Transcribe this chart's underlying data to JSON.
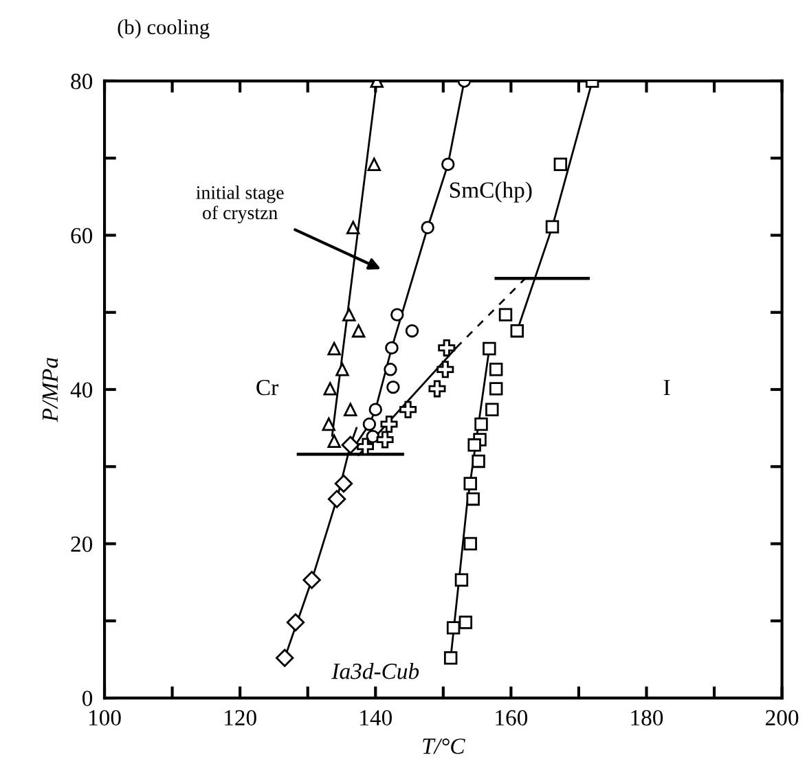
{
  "chart_data": {
    "type": "scatter",
    "title": "(b) cooling",
    "xlabel": "T/°C",
    "ylabel": "P/MPa",
    "xlim": [
      100,
      200
    ],
    "ylim": [
      0,
      80
    ],
    "xticks": [
      100,
      {
        "value": 110,
        "label": null
      },
      120,
      {
        "value": 130,
        "label": null
      },
      140,
      {
        "value": 150,
        "label": null
      },
      160,
      {
        "value": 170,
        "label": null
      },
      180,
      {
        "value": 190,
        "label": null
      },
      200
    ],
    "yticks": [
      0,
      {
        "value": 10,
        "label": null
      },
      20,
      {
        "value": 30,
        "label": null
      },
      40,
      {
        "value": 50,
        "label": null
      },
      60,
      {
        "value": 70,
        "label": null
      },
      80
    ],
    "grid": false,
    "legend": false,
    "series": [
      {
        "marker": "triangle",
        "color": "#000000",
        "x": [
          140.2,
          139.8,
          136.7,
          136.1,
          137.5,
          133.9,
          135.1,
          133.3,
          136.3,
          133.1,
          133.9
        ],
        "values": [
          80,
          69.2,
          61,
          49.7,
          47.6,
          45.3,
          42.6,
          40.1,
          37.4,
          35.5,
          33.3
        ]
      },
      {
        "marker": "circle",
        "color": "#000000",
        "x": [
          153.1,
          150.7,
          147.7,
          143.2,
          145.4,
          142.4,
          142.2,
          142.6,
          140.0,
          139.1,
          139.6
        ],
        "values": [
          80,
          69.2,
          61,
          49.7,
          47.6,
          45.4,
          42.6,
          40.3,
          37.4,
          35.5,
          33.9
        ]
      },
      {
        "marker": "cross",
        "color": "#000000",
        "x": [
          150.5,
          150.3,
          149.1,
          144.8,
          142.0,
          141.4,
          138.5
        ],
        "values": [
          45.4,
          42.6,
          40.1,
          37.4,
          35.5,
          33.5,
          32.6
        ]
      },
      {
        "marker": "diamond",
        "color": "#000000",
        "x": [
          136.3,
          135.3,
          134.3,
          130.6,
          128.2,
          126.6
        ],
        "values": [
          32.8,
          27.8,
          25.8,
          15.3,
          9.8,
          5.2
        ]
      },
      {
        "marker": "square",
        "color": "#000000",
        "x": [
          172.0,
          167.3,
          166.1,
          159.2,
          160.9
        ],
        "values": [
          80,
          69.2,
          61.1,
          49.7,
          47.6
        ]
      },
      {
        "marker": "square",
        "color": "#000000",
        "x": [
          156.8,
          157.8,
          157.8,
          157.2,
          155.6,
          155.4,
          154.6,
          155.2,
          154.0,
          154.4,
          154.0,
          152.7,
          153.3,
          151.5,
          151.1
        ],
        "values": [
          45.3,
          42.6,
          40.1,
          37.4,
          35.5,
          33.5,
          32.8,
          30.7,
          27.8,
          25.8,
          20.0,
          15.3,
          9.8,
          9.1,
          5.2
        ]
      },
      {
        "type": "line",
        "marker": "none",
        "line_style": "solid",
        "color": "#000000",
        "x": [
          133.6,
          140.2
        ],
        "values": [
          34,
          80
        ]
      },
      {
        "type": "line",
        "marker": "none",
        "line_style": "solid",
        "color": "#000000",
        "x": [
          136.8,
          139.1,
          140.0,
          142.4,
          147.7,
          150.7,
          153.1
        ],
        "values": [
          32.5,
          35.5,
          37.4,
          45.4,
          61,
          69.2,
          80
        ]
      },
      {
        "type": "line",
        "marker": "none",
        "line_style": "solid",
        "color": "#000000",
        "x": [
          137.5,
          151.9
        ],
        "values": [
          31.5,
          45.4
        ]
      },
      {
        "type": "line",
        "marker": "none",
        "line_style": "dashed",
        "color": "#000000",
        "x": [
          151.9,
          162.1
        ],
        "values": [
          45.4,
          54.4
        ]
      },
      {
        "type": "line",
        "marker": "none",
        "line_style": "solid",
        "color": "#000000",
        "x": [
          126.6,
          130.6,
          134.3,
          136.3,
          137.2
        ],
        "values": [
          5.2,
          15.3,
          25.8,
          32.8,
          35
        ]
      },
      {
        "type": "line",
        "marker": "none",
        "line_style": "solid",
        "color": "#000000",
        "x": [
          160.9,
          166.1,
          172.0
        ],
        "values": [
          47.6,
          61.1,
          80
        ]
      },
      {
        "type": "line",
        "marker": "none",
        "line_style": "solid",
        "color": "#000000",
        "x": [
          151.1,
          153.5,
          156.8
        ],
        "values": [
          5.2,
          25,
          45.3
        ]
      },
      {
        "type": "line",
        "marker": "none",
        "line_style": "solid",
        "color": "#000000",
        "x": [
          128.6,
          144.0
        ],
        "values": [
          31.6,
          31.6
        ]
      },
      {
        "type": "line",
        "marker": "none",
        "line_style": "solid",
        "color": "#000000",
        "x": [
          157.8,
          171.4
        ],
        "values": [
          54.4,
          54.4
        ]
      }
    ],
    "annotations": [
      "initial stage\nof crystzn",
      "Cr",
      "I",
      "SmC(hp)",
      "Ia3d-Cub"
    ]
  }
}
